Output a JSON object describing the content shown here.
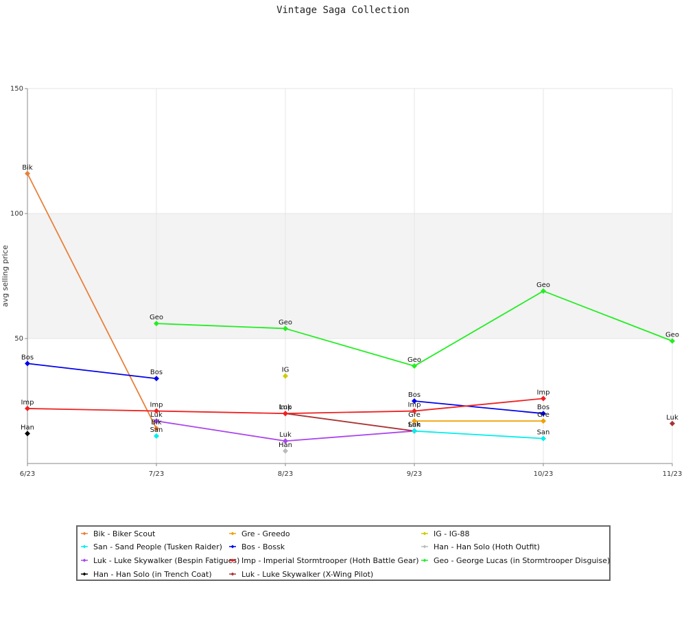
{
  "chart_data": {
    "type": "line",
    "title": "Vintage Saga Collection",
    "xlabel": "",
    "ylabel": "avg selling price",
    "x": [
      "6/23",
      "7/23",
      "8/23",
      "9/23",
      "10/23",
      "11/23"
    ],
    "ylim": [
      0,
      150
    ],
    "yticks": [
      50,
      100,
      150
    ],
    "band": [
      50,
      100
    ],
    "grid": true,
    "legend": "bottom",
    "series": [
      {
        "name": "Bik - Biker Scout",
        "label": "Bik",
        "color": "#e8803a",
        "values": [
          116,
          14,
          null,
          null,
          null,
          null
        ]
      },
      {
        "name": "Bos - Bossk",
        "label": "Bos",
        "color": "#0000ee",
        "values": [
          40,
          34,
          null,
          25,
          20,
          null
        ]
      },
      {
        "name": "Geo - George Lucas (in Stormtrooper Disguise)",
        "label": "Geo",
        "color": "#22ee22",
        "values": [
          null,
          56,
          54,
          39,
          69,
          49
        ]
      },
      {
        "name": "Gre - Greedo",
        "label": "Gre",
        "color": "#f0a000",
        "values": [
          null,
          null,
          null,
          17,
          17,
          null
        ]
      },
      {
        "name": "Han - Han Solo (Hoth Outfit)",
        "label": "Han",
        "color": "#bbbbbb",
        "values": [
          null,
          null,
          5,
          null,
          null,
          null
        ]
      },
      {
        "name": "Han - Han Solo (in Trench Coat)",
        "label": "Han",
        "color": "#000000",
        "values": [
          12,
          null,
          null,
          null,
          null,
          null
        ]
      },
      {
        "name": "IG - IG-88",
        "label": "IG",
        "color": "#cccc00",
        "values": [
          null,
          null,
          35,
          null,
          null,
          null
        ]
      },
      {
        "name": "Luk - Luke Skywalker (Bespin Fatigues)",
        "label": "Luk",
        "color": "#aa44ee",
        "values": [
          null,
          17,
          9,
          13,
          null,
          null
        ]
      },
      {
        "name": "Luk - Luke Skywalker (X-Wing Pilot)",
        "label": "Luk",
        "color": "#aa3333",
        "values": [
          null,
          null,
          20,
          13,
          null,
          16
        ]
      },
      {
        "name": "San - Sand People (Tusken Raider)",
        "label": "San",
        "color": "#00eeee",
        "values": [
          null,
          11,
          null,
          13,
          10,
          null
        ]
      },
      {
        "name": "Imp - Imperial Stormtrooper (Hoth Battle Gear)",
        "label": "Imp",
        "color": "#ee2222",
        "values": [
          22,
          21,
          20,
          21,
          26,
          null
        ]
      }
    ]
  }
}
